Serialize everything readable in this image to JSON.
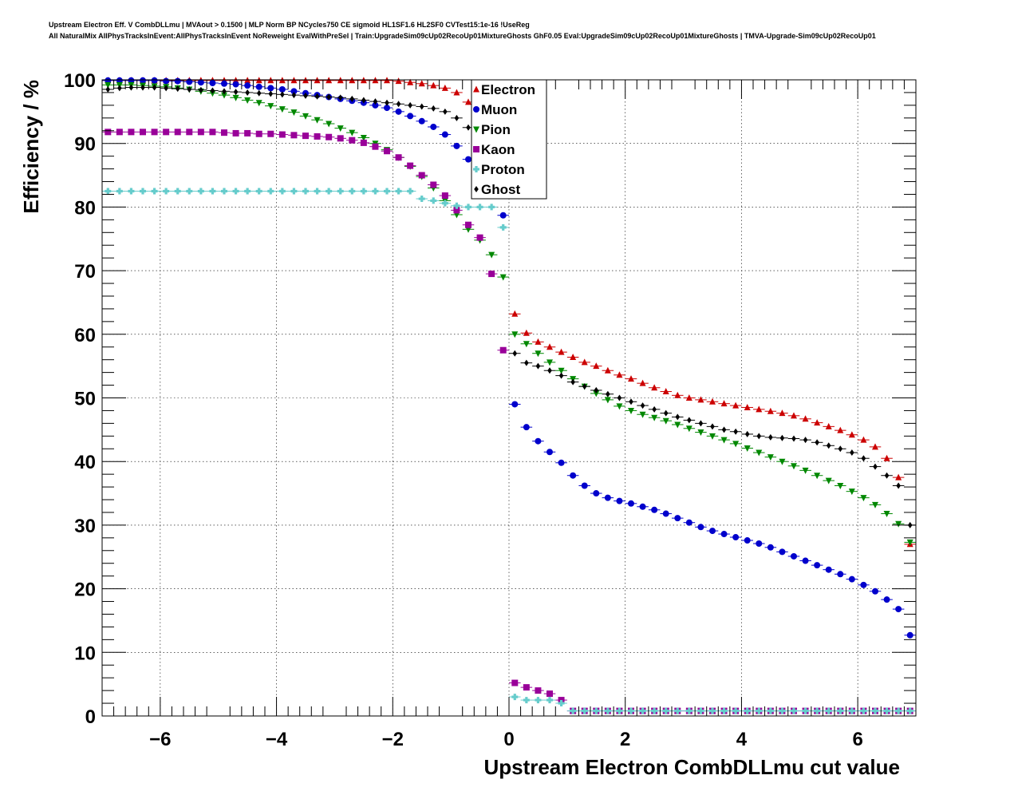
{
  "title_lines": [
    "Upstream Electron Eff. V CombDLLmu | MVAout > 0.1500 | MLP Norm BP NCycles750 CE sigmoid HL1SF1.6 HL2SF0 CVTest15:1e-16 !UseReg",
    "All NaturalMix AllPhysTracksInEvent:AllPhysTracksInEvent NoReweight EvalWithPreSel | Train:UpgradeSim09cUp02RecoUp01MixtureGhosts GhF0.05 Eval:UpgradeSim09cUp02RecoUp01MixtureGhosts | TMVA-Upgrade-Sim09cUp02RecoUp01"
  ],
  "chart_data": {
    "type": "scatter",
    "xlabel": "Upstream Electron CombDLLmu cut value",
    "ylabel": "Efficiency / %",
    "xlim": [
      -7,
      7
    ],
    "ylim": [
      0,
      100
    ],
    "x_ticks": [
      -6,
      -4,
      -2,
      0,
      2,
      4,
      6
    ],
    "x_tick_labels": [
      "−6",
      "−4",
      "−2",
      "0",
      "2",
      "4",
      "6"
    ],
    "y_ticks": [
      0,
      10,
      20,
      30,
      40,
      50,
      60,
      70,
      80,
      90,
      100
    ],
    "y_tick_labels": [
      "0",
      "10",
      "20",
      "30",
      "40",
      "50",
      "60",
      "70",
      "80",
      "90",
      "100"
    ],
    "grid": true,
    "legend_position": "top-center",
    "x": [
      -6.9,
      -6.7,
      -6.5,
      -6.3,
      -6.1,
      -5.9,
      -5.7,
      -5.5,
      -5.3,
      -5.1,
      -4.9,
      -4.7,
      -4.5,
      -4.3,
      -4.1,
      -3.9,
      -3.7,
      -3.5,
      -3.3,
      -3.1,
      -2.9,
      -2.7,
      -2.5,
      -2.3,
      -2.1,
      -1.9,
      -1.7,
      -1.5,
      -1.3,
      -1.1,
      -0.9,
      -0.7,
      -0.5,
      -0.3,
      -0.1,
      0.1,
      0.3,
      0.5,
      0.7,
      0.9,
      1.1,
      1.3,
      1.5,
      1.7,
      1.9,
      2.1,
      2.3,
      2.5,
      2.7,
      2.9,
      3.1,
      3.3,
      3.5,
      3.7,
      3.9,
      4.1,
      4.3,
      4.5,
      4.7,
      4.9,
      5.1,
      5.3,
      5.5,
      5.7,
      5.9,
      6.1,
      6.3,
      6.5,
      6.7,
      6.9
    ],
    "series": [
      {
        "name": "Electron",
        "color": "#cc0000",
        "marker": "triangle-up",
        "values": [
          99.9,
          99.9,
          99.9,
          99.9,
          99.9,
          99.9,
          99.9,
          99.9,
          99.9,
          99.9,
          99.9,
          99.9,
          99.9,
          99.9,
          99.9,
          99.9,
          99.9,
          99.9,
          99.9,
          99.9,
          99.9,
          99.9,
          99.9,
          99.9,
          99.9,
          99.8,
          99.6,
          99.4,
          99.1,
          98.7,
          98.0,
          96.5,
          94.0,
          90.0,
          84.0,
          63.2,
          60.2,
          58.8,
          58.0,
          57.2,
          56.4,
          55.6,
          55.0,
          54.3,
          53.6,
          53.0,
          52.3,
          51.6,
          51.0,
          50.4,
          50.0,
          49.7,
          49.4,
          49.1,
          48.8,
          48.5,
          48.2,
          47.9,
          47.6,
          47.2,
          46.7,
          46.1,
          45.5,
          44.9,
          44.2,
          43.4,
          42.3,
          40.5,
          37.5,
          27.0
        ]
      },
      {
        "name": "Muon",
        "color": "#0000cc",
        "marker": "circle",
        "values": [
          99.9,
          99.9,
          99.9,
          99.9,
          99.9,
          99.8,
          99.8,
          99.7,
          99.6,
          99.5,
          99.4,
          99.3,
          99.1,
          98.9,
          98.7,
          98.5,
          98.2,
          97.9,
          97.6,
          97.3,
          97.0,
          96.7,
          96.4,
          96.0,
          95.6,
          95.0,
          94.3,
          93.5,
          92.6,
          91.4,
          89.6,
          87.5,
          85.0,
          82.0,
          78.7,
          49.0,
          45.4,
          43.2,
          41.5,
          39.8,
          37.8,
          36.2,
          35.0,
          34.3,
          33.8,
          33.4,
          32.9,
          32.4,
          31.8,
          31.1,
          30.4,
          29.7,
          29.1,
          28.6,
          28.1,
          27.6,
          27.1,
          26.5,
          25.8,
          25.1,
          24.4,
          23.7,
          23.0,
          22.3,
          21.5,
          20.6,
          19.6,
          18.3,
          16.8,
          12.7
        ]
      },
      {
        "name": "Pion",
        "color": "#008800",
        "marker": "triangle-down",
        "values": [
          99.2,
          99.2,
          99.2,
          99.1,
          99.0,
          98.9,
          98.7,
          98.5,
          98.2,
          97.9,
          97.6,
          97.2,
          96.8,
          96.4,
          95.9,
          95.4,
          94.9,
          94.3,
          93.7,
          93.1,
          92.4,
          91.7,
          90.9,
          90.0,
          89.0,
          87.8,
          86.4,
          84.8,
          83.0,
          81.0,
          78.8,
          76.5,
          74.8,
          72.5,
          69.0,
          60.0,
          58.5,
          57.0,
          55.6,
          54.3,
          53.0,
          51.8,
          50.7,
          49.7,
          48.7,
          48.0,
          47.4,
          46.9,
          46.4,
          45.8,
          45.2,
          44.6,
          44.0,
          43.4,
          42.8,
          42.1,
          41.4,
          40.7,
          40.0,
          39.3,
          38.6,
          37.8,
          37.0,
          36.2,
          35.3,
          34.3,
          33.2,
          31.8,
          30.2,
          27.3
        ]
      },
      {
        "name": "Kaon",
        "color": "#990099",
        "marker": "square",
        "values": [
          91.8,
          91.8,
          91.8,
          91.8,
          91.8,
          91.8,
          91.8,
          91.8,
          91.8,
          91.8,
          91.7,
          91.6,
          91.6,
          91.5,
          91.5,
          91.4,
          91.3,
          91.2,
          91.1,
          91.0,
          90.8,
          90.5,
          90.1,
          89.5,
          88.8,
          87.8,
          86.5,
          85.0,
          83.5,
          81.8,
          79.5,
          77.2,
          75.2,
          69.5,
          57.5,
          5.2,
          4.5,
          4.0,
          3.5,
          2.5,
          0.8,
          0.8,
          0.8,
          0.8,
          0.8,
          0.8,
          0.8,
          0.8,
          0.8,
          0.8,
          0.8,
          0.8,
          0.8,
          0.8,
          0.8,
          0.8,
          0.8,
          0.8,
          0.8,
          0.8,
          0.8,
          0.8,
          0.8,
          0.8,
          0.8,
          0.8,
          0.8,
          0.8,
          0.8,
          0.8
        ]
      },
      {
        "name": "Proton",
        "color": "#66cccc",
        "marker": "cross",
        "values": [
          82.5,
          82.5,
          82.5,
          82.5,
          82.5,
          82.5,
          82.5,
          82.5,
          82.5,
          82.5,
          82.5,
          82.5,
          82.5,
          82.5,
          82.5,
          82.5,
          82.5,
          82.5,
          82.5,
          82.5,
          82.5,
          82.5,
          82.5,
          82.5,
          82.5,
          82.5,
          82.5,
          81.3,
          81.0,
          80.6,
          80.2,
          80.0,
          80.0,
          80.0,
          76.8,
          3.0,
          2.5,
          2.5,
          2.5,
          2.0,
          0.8,
          0.8,
          0.8,
          0.8,
          0.8,
          0.8,
          0.8,
          0.8,
          0.8,
          0.8,
          0.8,
          0.8,
          0.8,
          0.8,
          0.8,
          0.8,
          0.8,
          0.8,
          0.8,
          0.8,
          0.8,
          0.8,
          0.8,
          0.8,
          0.8,
          0.8,
          0.8,
          0.8,
          0.8,
          0.8
        ]
      },
      {
        "name": "Ghost",
        "color": "#000000",
        "marker": "diamond",
        "values": [
          98.5,
          98.7,
          98.8,
          98.8,
          98.8,
          98.7,
          98.6,
          98.5,
          98.4,
          98.3,
          98.2,
          98.1,
          98.0,
          97.9,
          97.8,
          97.7,
          97.6,
          97.5,
          97.4,
          97.3,
          97.2,
          97.0,
          96.8,
          96.6,
          96.4,
          96.2,
          96.0,
          95.8,
          95.5,
          95.0,
          94.0,
          92.5,
          90.5,
          88.5,
          85.0,
          57.0,
          55.5,
          55.0,
          54.3,
          53.5,
          52.5,
          51.8,
          51.2,
          50.6,
          50.0,
          49.4,
          48.8,
          48.2,
          47.6,
          47.0,
          46.5,
          46.0,
          45.5,
          45.0,
          44.7,
          44.3,
          44.0,
          43.8,
          43.7,
          43.6,
          43.4,
          43.0,
          42.5,
          42.0,
          41.4,
          40.5,
          39.2,
          37.8,
          36.2,
          30.0
        ]
      }
    ]
  }
}
